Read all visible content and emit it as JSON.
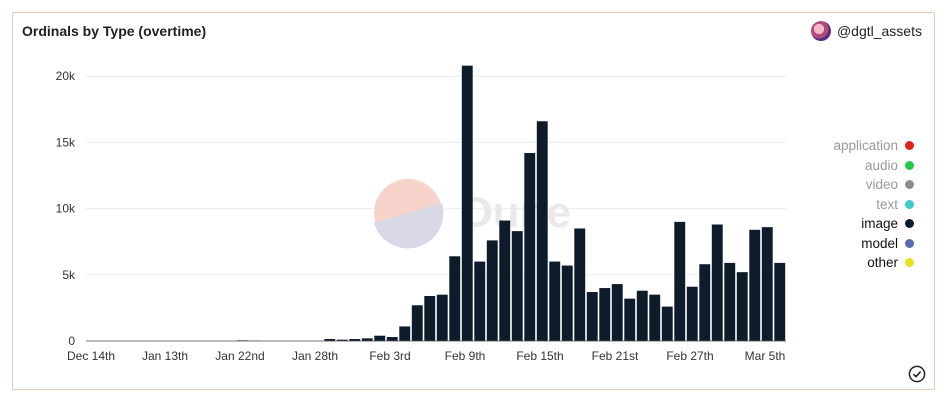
{
  "header": {
    "title": "Ordinals by Type (overtime)",
    "brand": "@dgtl_assets"
  },
  "legend": [
    {
      "label": "application",
      "color": "#e0201c",
      "active": false
    },
    {
      "label": "audio",
      "color": "#22c94a",
      "active": false
    },
    {
      "label": "video",
      "color": "#8c8c8c",
      "active": false
    },
    {
      "label": "text",
      "color": "#3fc9c9",
      "active": false
    },
    {
      "label": "image",
      "color": "#0d1b2a",
      "active": true
    },
    {
      "label": "model",
      "color": "#5a6bb0",
      "active": true
    },
    {
      "label": "other",
      "color": "#e8e020",
      "active": true
    }
  ],
  "chart_data": {
    "type": "bar",
    "title": "Ordinals by Type (overtime)",
    "x_tick_labels": [
      "Dec 14th",
      "Jan 13th",
      "Jan 22nd",
      "Jan 28th",
      "Feb 3rd",
      "Feb 9th",
      "Feb 15th",
      "Feb 21st",
      "Feb 27th",
      "Mar 5th"
    ],
    "y_tick_labels": [
      "0",
      "5k",
      "10k",
      "15k",
      "20k"
    ],
    "ylim": [
      0,
      21000
    ],
    "grid": true,
    "legend_position": "right",
    "series": [
      {
        "name": "image",
        "color": "#0d1b2a",
        "values": [
          0,
          0,
          0,
          0,
          0,
          0,
          0,
          0,
          0,
          0,
          0,
          0,
          50,
          30,
          0,
          0,
          0,
          0,
          0,
          150,
          100,
          150,
          200,
          400,
          300,
          1100,
          2700,
          3400,
          3500,
          6400,
          20800,
          6000,
          7600,
          9100,
          8300,
          14200,
          16600,
          6000,
          5700,
          8500,
          3700,
          4000,
          4300,
          3200,
          3800,
          3500,
          2600,
          9000,
          4100,
          5800,
          8800,
          5900,
          5200,
          8400,
          8600,
          5900
        ]
      }
    ],
    "watermark": "Dune"
  },
  "status": {
    "check_icon": "check-circle-icon"
  }
}
